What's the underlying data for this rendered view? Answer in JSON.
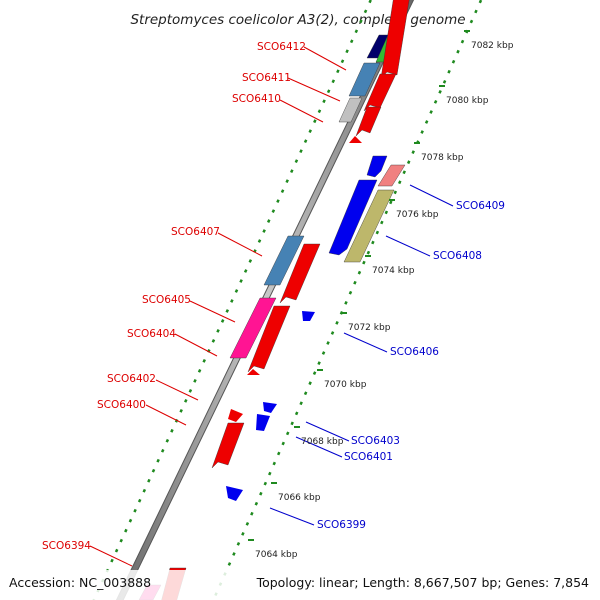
{
  "title": "Streptomyces coelicolor A3(2), complete genome",
  "footer": {
    "accession": "Accession: NC_003888",
    "topology": "Topology: linear; Length: 8,667,507 bp; Genes: 7,854"
  },
  "colors": {
    "forward_label": "#dd0000",
    "reverse_label": "#0000cc",
    "backbone": "#888888",
    "dots": "#1f8a1f"
  },
  "ticks": [
    "7064 kbp",
    "7066 kbp",
    "7068 kbp",
    "7070 kbp",
    "7072 kbp",
    "7074 kbp",
    "7076 kbp",
    "7078 kbp",
    "7080 kbp",
    "7082 kbp"
  ],
  "forward_labels": [
    "SCO6412",
    "SCO6411",
    "SCO6410",
    "SCO6407",
    "SCO6405",
    "SCO6404",
    "SCO6402",
    "SCO6400",
    "SCO6394"
  ],
  "reverse_labels": [
    "SCO6409",
    "SCO6408",
    "SCO6406",
    "SCO6403",
    "SCO6401",
    "SCO6399"
  ]
}
